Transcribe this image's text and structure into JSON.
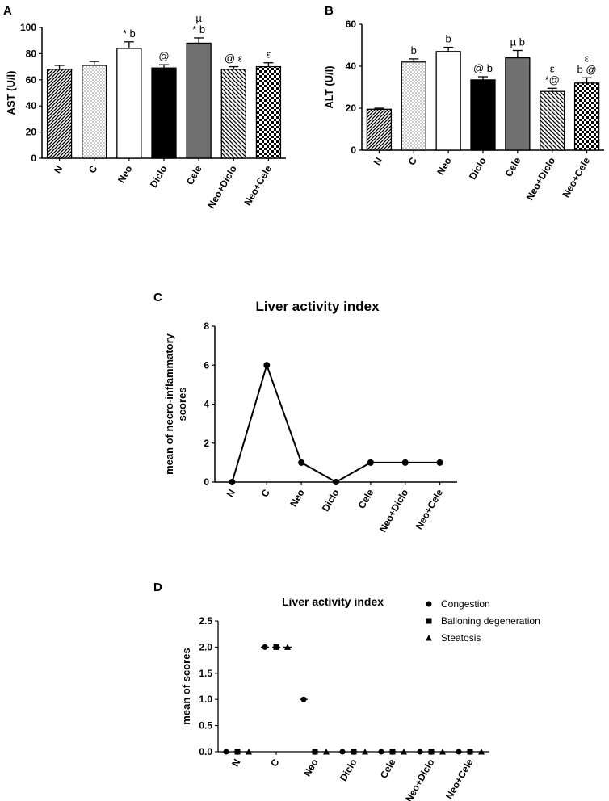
{
  "chart_data": [
    {
      "panel": "A",
      "type": "bar",
      "title": "",
      "xlabel": "",
      "ylabel": "AST (U/l)",
      "ylim": [
        0,
        100
      ],
      "yticks": [
        0,
        20,
        40,
        60,
        80,
        100
      ],
      "categories": [
        "N",
        "C",
        "Neo",
        "Diclo",
        "Cele",
        "Neo+Diclo",
        "Neo+Cele"
      ],
      "values": [
        68,
        71,
        84,
        69,
        88,
        68,
        70
      ],
      "errors": [
        3,
        3,
        5,
        2.5,
        4,
        2,
        3
      ],
      "patterns": [
        "hatch-dense",
        "dots",
        "white",
        "black",
        "gray",
        "diag",
        "checker"
      ],
      "annotations": [
        [
          ""
        ],
        [
          ""
        ],
        [
          "* b"
        ],
        [
          "@"
        ],
        [
          "µ",
          "* b"
        ],
        [
          "@ ε"
        ],
        [
          "ε"
        ]
      ]
    },
    {
      "panel": "B",
      "type": "bar",
      "title": "",
      "xlabel": "",
      "ylabel": "ALT (U/l)",
      "ylim": [
        0,
        60
      ],
      "yticks": [
        0,
        20,
        40,
        60
      ],
      "categories": [
        "N",
        "C",
        "Neo",
        "Diclo",
        "Cele",
        "Neo+Diclo",
        "Neo+Cele"
      ],
      "values": [
        19.5,
        42,
        47,
        33.5,
        44,
        28,
        32
      ],
      "errors": [
        0.5,
        1.5,
        2,
        1.5,
        3.5,
        1.5,
        2.5
      ],
      "patterns": [
        "hatch-dense",
        "dots",
        "white",
        "black",
        "gray",
        "diag",
        "checker"
      ],
      "annotations": [
        [
          ""
        ],
        [
          "b"
        ],
        [
          "b"
        ],
        [
          "@ b"
        ],
        [
          "µ b"
        ],
        [
          "ε",
          "*@"
        ],
        [
          "ε",
          "b @"
        ]
      ]
    },
    {
      "panel": "C",
      "type": "line",
      "title": "Liver activity index",
      "xlabel": "",
      "ylabel": "mean of necro-inflammatory scores",
      "ylabel_lines": [
        "mean of necro-inflammatory",
        "scores"
      ],
      "ylim": [
        0,
        8
      ],
      "yticks": [
        0,
        2,
        4,
        6,
        8
      ],
      "categories": [
        "N",
        "C",
        "Neo",
        "Diclo",
        "Cele",
        "Neo+Diclo",
        "Neo+Cele"
      ],
      "values": [
        0,
        6,
        1,
        0,
        1,
        1,
        1
      ]
    },
    {
      "panel": "D",
      "type": "scatter",
      "title": "Liver activity index",
      "xlabel": "",
      "ylabel": "mean of scores",
      "ylim": [
        0,
        2.5
      ],
      "yticks": [
        "0.0",
        "0.5",
        "1.0",
        "1.5",
        "2.0",
        "2.5"
      ],
      "categories": [
        "N",
        "C",
        "Neo",
        "Diclo",
        "Cele",
        "Neo+Diclo",
        "Neo+Cele"
      ],
      "legend_position": "top-right",
      "series": [
        {
          "name": "Congestion",
          "marker": "circle",
          "values": [
            0,
            2,
            1,
            0,
            0,
            0,
            0
          ]
        },
        {
          "name": "Balloning degeneration",
          "marker": "square",
          "values": [
            0,
            2,
            0,
            0,
            0,
            0,
            0
          ]
        },
        {
          "name": "Steatosis",
          "marker": "triangle",
          "values": [
            0,
            2,
            0,
            0,
            0,
            0,
            0
          ]
        }
      ]
    }
  ]
}
